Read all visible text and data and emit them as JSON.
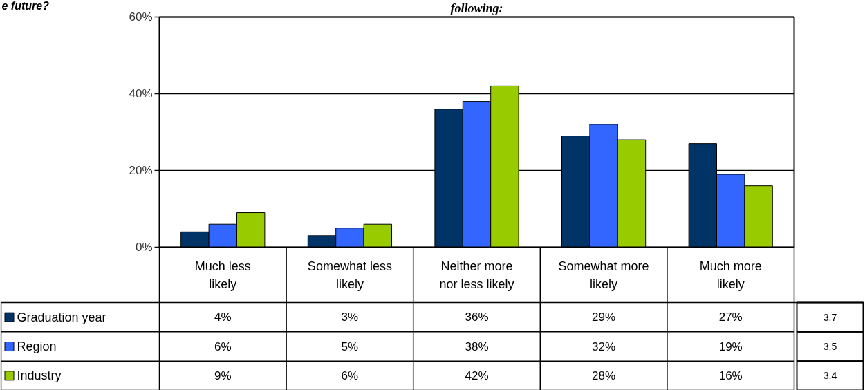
{
  "chart_data": {
    "type": "bar",
    "title": "following:",
    "subtitle": "e future?",
    "categories": [
      "Much less likely",
      "Somewhat less likely",
      "Neither more nor less likely",
      "Somewhat more likely",
      "Much more likely"
    ],
    "series": [
      {
        "name": "Graduation year",
        "color": "#003366",
        "values": [
          4,
          3,
          36,
          29,
          27
        ],
        "value_labels": [
          "4%",
          "3%",
          "36%",
          "29%",
          "27%"
        ]
      },
      {
        "name": "Region",
        "color": "#3366ff",
        "values": [
          6,
          5,
          38,
          32,
          19
        ],
        "value_labels": [
          "6%",
          "5%",
          "38%",
          "32%",
          "19%"
        ]
      },
      {
        "name": "Industry",
        "color": "#99cc00",
        "values": [
          9,
          6,
          42,
          28,
          16
        ],
        "value_labels": [
          "9%",
          "6%",
          "42%",
          "28%",
          "16%"
        ]
      }
    ],
    "annotations": [
      "3.7",
      "3.5",
      "3.4"
    ],
    "ylim": [
      0,
      60
    ],
    "yticks": [
      {
        "value": 0,
        "label": "0%"
      },
      {
        "value": 20,
        "label": "20%"
      },
      {
        "value": 40,
        "label": "40%"
      },
      {
        "value": 60,
        "label": "60%"
      }
    ],
    "grid": "y",
    "legend": "bottom"
  }
}
